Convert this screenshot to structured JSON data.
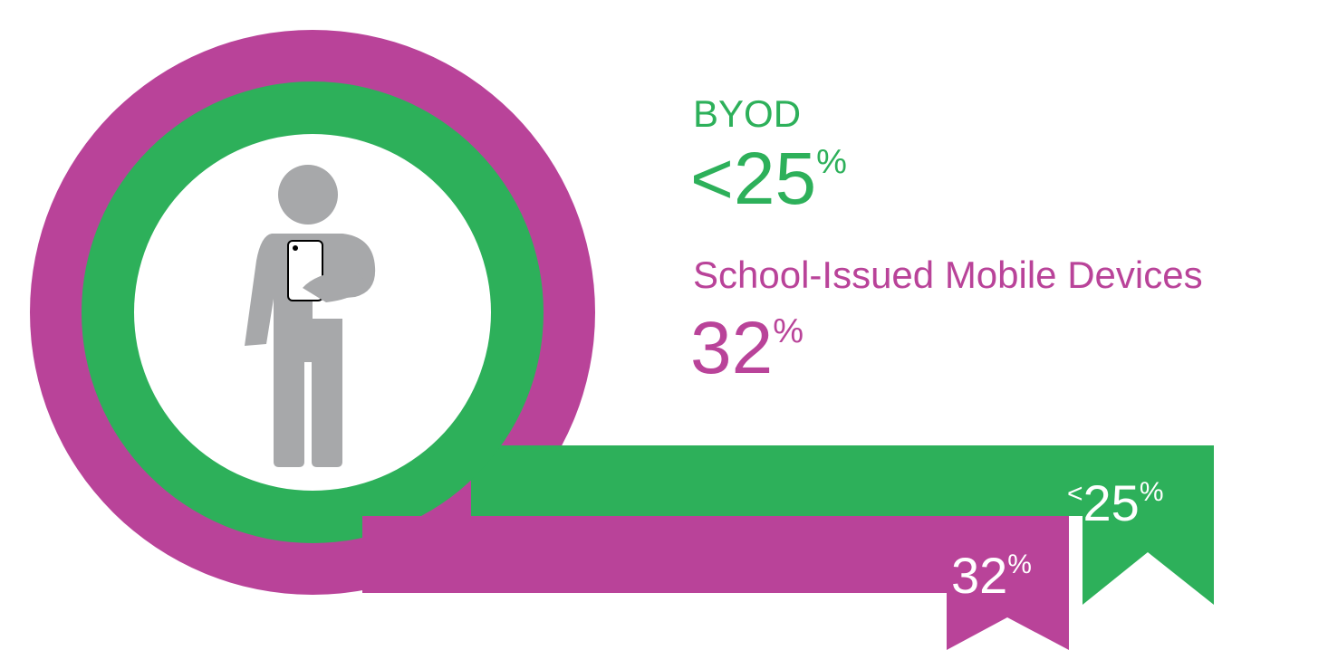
{
  "stats": [
    {
      "label": "BYOD",
      "qualifier": "<",
      "value": 25,
      "unit": "%",
      "color": "#2db05a"
    },
    {
      "label": "School-Issued Mobile Devices",
      "value": 32,
      "unit": "%",
      "color": "#b94399"
    }
  ]
}
